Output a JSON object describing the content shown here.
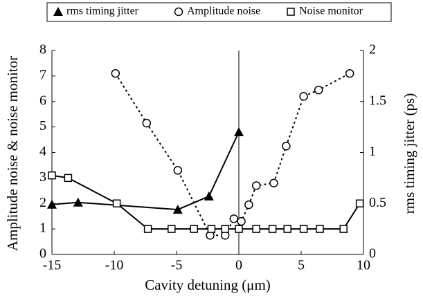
{
  "chart_data": {
    "type": "line",
    "x_label": "Cavity detuning (μm)",
    "y_label": "Amplitude noise & noise monitor",
    "y2_label": "rms timing jitter (ps)",
    "xlim": [
      -15,
      10
    ],
    "xticks": [
      -15,
      -10,
      -5,
      0,
      5,
      10
    ],
    "ylim": [
      0,
      8
    ],
    "yticks": [
      0,
      1,
      2,
      3,
      4,
      5,
      6,
      7,
      8
    ],
    "y2lim": [
      0,
      2
    ],
    "y2ticks": [
      0,
      0.5,
      1,
      1.5,
      2
    ],
    "vline": 0,
    "legend": "top",
    "series": [
      {
        "name": "rms timing jitter",
        "color": "#000000",
        "marker": "triangle",
        "dashed": false,
        "axis": "y2",
        "x": [
          -15,
          -12.9,
          -4.9,
          -2.4,
          0
        ],
        "values": [
          0.49,
          0.51,
          0.44,
          0.57,
          1.2
        ]
      },
      {
        "name": "Amplitude noise",
        "color": "#000000",
        "marker": "circle",
        "dashed": true,
        "axis": "y",
        "x": [
          -9.9,
          -7.4,
          -4.9,
          -2.3,
          -1.1,
          -0.4,
          0.2,
          0.8,
          1.4,
          2.8,
          3.8,
          5.2,
          6.4,
          8.9
        ],
        "values": [
          7.1,
          5.15,
          3.3,
          0.75,
          0.75,
          1.4,
          1.3,
          1.95,
          2.7,
          2.8,
          4.25,
          6.2,
          6.45,
          7.1
        ]
      },
      {
        "name": "Noise monitor",
        "color": "#000000",
        "marker": "square",
        "dashed": false,
        "axis": "y",
        "x": [
          -15,
          -13.7,
          -9.8,
          -7.3,
          -5.4,
          -3.6,
          -2.2,
          -1.1,
          0,
          1.4,
          2.7,
          3.9,
          5.2,
          6.5,
          8.4,
          9.7
        ],
        "values": [
          3.1,
          3.0,
          2.0,
          1,
          1,
          1,
          1,
          1,
          1,
          1,
          1,
          1,
          1,
          1,
          1,
          2.0
        ]
      }
    ]
  }
}
